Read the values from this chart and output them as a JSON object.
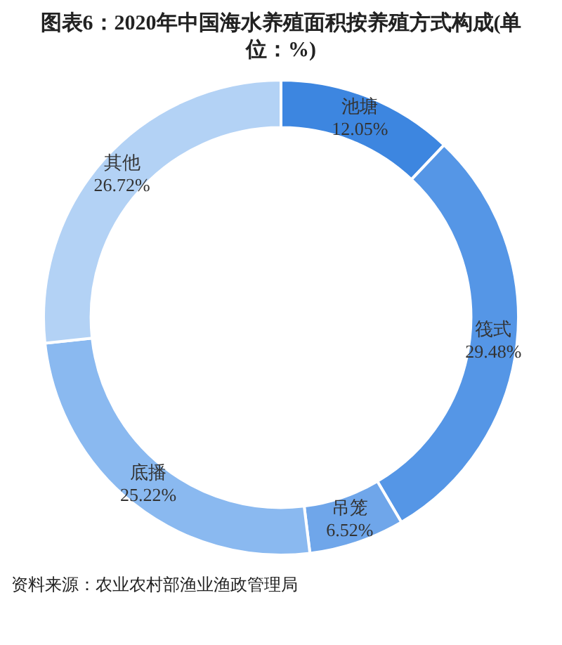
{
  "chart_data": {
    "type": "donut",
    "title": "图表6：2020年中国海水养殖面积按养殖方式构成(单位：%)",
    "categories": [
      "池塘",
      "筏式",
      "吊笼",
      "底播",
      "其他"
    ],
    "values": [
      12.05,
      29.48,
      6.52,
      25.22,
      26.72
    ],
    "value_labels": [
      "12.05%",
      "29.48%",
      "6.52%",
      "25.22%",
      "26.72%"
    ],
    "colors": [
      "#3d86e0",
      "#5596e6",
      "#6fa6ea",
      "#8ab9f0",
      "#b3d2f5"
    ],
    "legend": false,
    "annotations": [
      "资料来源：农业农村部渔业渔政管理局"
    ]
  }
}
